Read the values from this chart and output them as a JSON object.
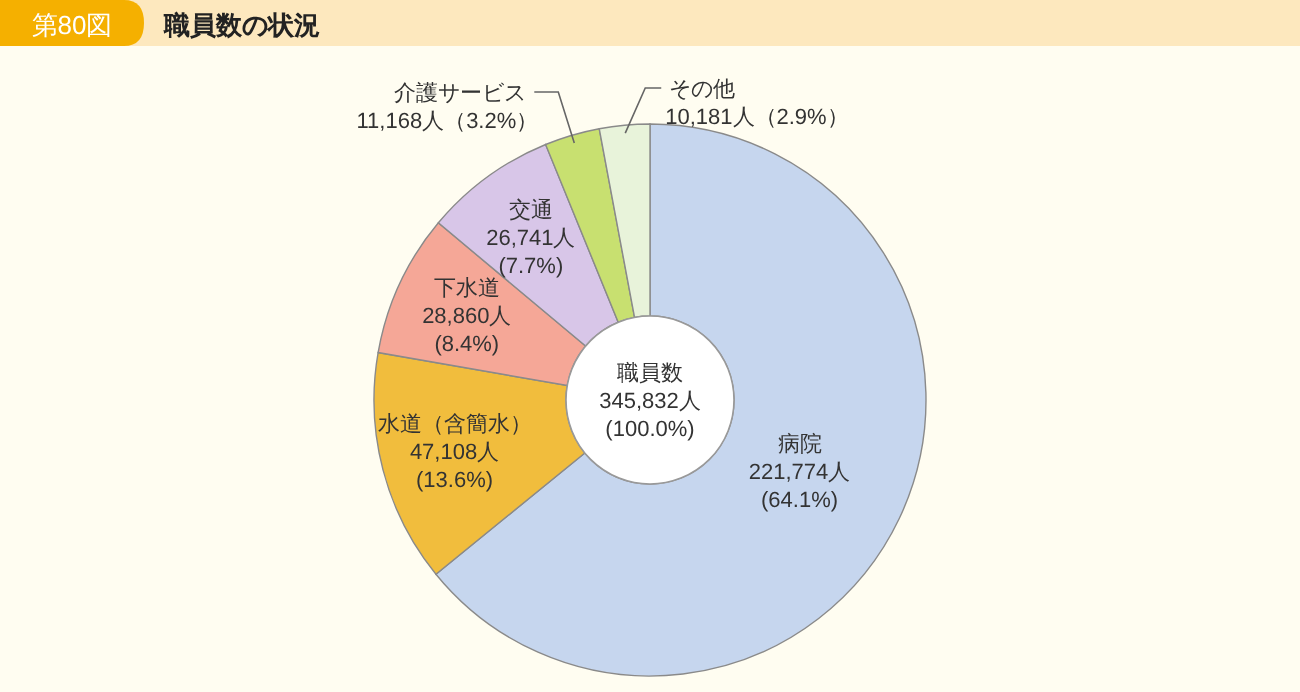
{
  "chart_data": {
    "type": "donut",
    "title": "職員数の状況",
    "subtitle": "第80図",
    "categories": [
      "病院",
      "水道（含簡水）",
      "下水道",
      "交通",
      "介護サービス",
      "その他"
    ],
    "values": [
      221774,
      47108,
      28860,
      26741,
      11168,
      10181
    ],
    "colors": [
      "#c6d6ee",
      "#f1bd3d",
      "#f5a797",
      "#d8c6e8",
      "#c8e070",
      "#e8f3da"
    ],
    "value_labels": [
      "221,774人\n(64.1%)",
      "47,108人\n(13.6%)",
      "28,860人\n(8.4%)",
      "26,741人\n(7.7%)",
      "11,168人（3.2%）",
      "10,181人（2.9%）"
    ],
    "annotations": [
      "職員数",
      "345,832人",
      "(100.0%)"
    ]
  }
}
